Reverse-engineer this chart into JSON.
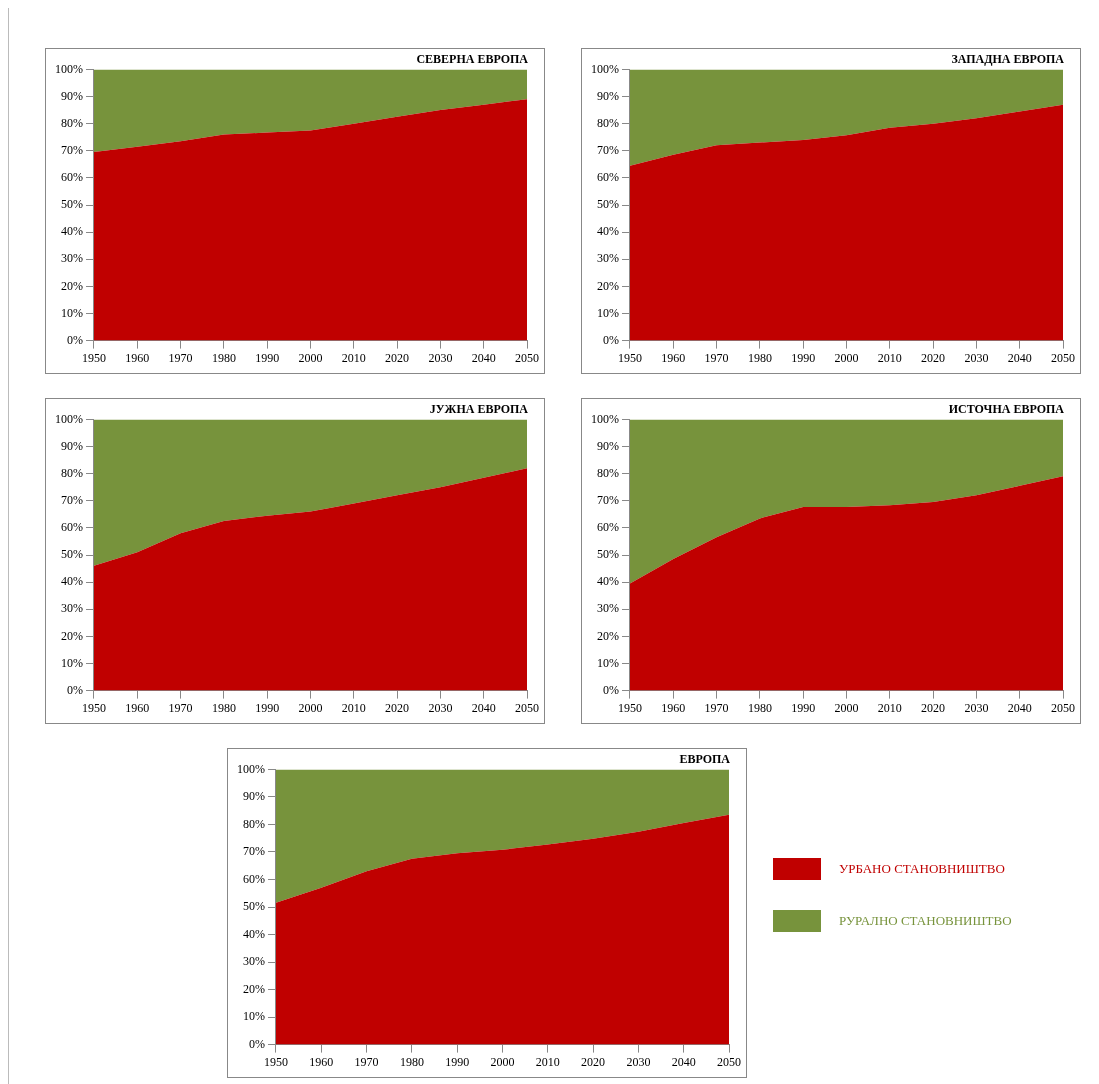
{
  "chart_data": [
    {
      "type": "area",
      "title": "СЕВЕРНА ЕВРОПА",
      "categories": [
        "1950",
        "1960",
        "1970",
        "1980",
        "1990",
        "2000",
        "2010",
        "2020",
        "2030",
        "2040",
        "2050"
      ],
      "stacked": true,
      "ylim": [
        0,
        100
      ],
      "yticks": [
        {
          "value": 0,
          "label": "0%"
        },
        {
          "value": 10,
          "label": "10%"
        },
        {
          "value": 20,
          "label": "20%"
        },
        {
          "value": 30,
          "label": "30%"
        },
        {
          "value": 40,
          "label": "40%"
        },
        {
          "value": 50,
          "label": "50%"
        },
        {
          "value": 60,
          "label": "60%"
        },
        {
          "value": 70,
          "label": "70%"
        },
        {
          "value": 80,
          "label": "80%"
        },
        {
          "value": 90,
          "label": "90%"
        },
        {
          "value": 100,
          "label": "100%"
        }
      ],
      "series": [
        {
          "color": "#c00000",
          "values": [
            69.5,
            71.5,
            73.5,
            76,
            76.7,
            77.5,
            80,
            82.5,
            85,
            87,
            89
          ]
        },
        {
          "color": "#77933c",
          "values": [
            30.5,
            28.5,
            26.5,
            24,
            23.3,
            22.5,
            20,
            17.5,
            15,
            13,
            11
          ]
        }
      ]
    },
    {
      "type": "area",
      "title": "ЗАПАДНА ЕВРОПА",
      "categories": [
        "1950",
        "1960",
        "1970",
        "1980",
        "1990",
        "2000",
        "2010",
        "2020",
        "2030",
        "2040",
        "2050"
      ],
      "stacked": true,
      "ylim": [
        0,
        100
      ],
      "yticks": [
        {
          "value": 0,
          "label": "0%"
        },
        {
          "value": 10,
          "label": "10%"
        },
        {
          "value": 20,
          "label": "20%"
        },
        {
          "value": 30,
          "label": "30%"
        },
        {
          "value": 40,
          "label": "40%"
        },
        {
          "value": 50,
          "label": "50%"
        },
        {
          "value": 60,
          "label": "60%"
        },
        {
          "value": 70,
          "label": "70%"
        },
        {
          "value": 80,
          "label": "80%"
        },
        {
          "value": 90,
          "label": "90%"
        },
        {
          "value": 100,
          "label": "100%"
        }
      ],
      "series": [
        {
          "color": "#c00000",
          "values": [
            64.5,
            68.5,
            72,
            73,
            74,
            75.7,
            78.5,
            80,
            82,
            84.5,
            87
          ]
        },
        {
          "color": "#77933c",
          "values": [
            35.5,
            31.5,
            28,
            27,
            26,
            24.3,
            21.5,
            20,
            18,
            15.5,
            13
          ]
        }
      ]
    },
    {
      "type": "area",
      "title": "ЈУЖНА ЕВРОПА",
      "categories": [
        "1950",
        "1960",
        "1970",
        "1980",
        "1990",
        "2000",
        "2010",
        "2020",
        "2030",
        "2040",
        "2050"
      ],
      "stacked": true,
      "ylim": [
        0,
        100
      ],
      "yticks": [
        {
          "value": 0,
          "label": "0%"
        },
        {
          "value": 10,
          "label": "10%"
        },
        {
          "value": 20,
          "label": "20%"
        },
        {
          "value": 30,
          "label": "30%"
        },
        {
          "value": 40,
          "label": "40%"
        },
        {
          "value": 50,
          "label": "50%"
        },
        {
          "value": 60,
          "label": "60%"
        },
        {
          "value": 70,
          "label": "70%"
        },
        {
          "value": 80,
          "label": "80%"
        },
        {
          "value": 90,
          "label": "90%"
        },
        {
          "value": 100,
          "label": "100%"
        }
      ],
      "series": [
        {
          "color": "#c00000",
          "values": [
            46,
            51,
            58,
            62.5,
            64.5,
            66,
            69,
            72,
            75,
            78.5,
            82
          ]
        },
        {
          "color": "#77933c",
          "values": [
            54,
            49,
            42,
            37.5,
            35.5,
            34,
            31,
            28,
            25,
            21.5,
            18
          ]
        }
      ]
    },
    {
      "type": "area",
      "title": "ИСТОЧНА ЕВРОПА",
      "categories": [
        "1950",
        "1960",
        "1970",
        "1980",
        "1990",
        "2000",
        "2010",
        "2020",
        "2030",
        "2040",
        "2050"
      ],
      "stacked": true,
      "ylim": [
        0,
        100
      ],
      "yticks": [
        {
          "value": 0,
          "label": "0%"
        },
        {
          "value": 10,
          "label": "10%"
        },
        {
          "value": 20,
          "label": "20%"
        },
        {
          "value": 30,
          "label": "30%"
        },
        {
          "value": 40,
          "label": "40%"
        },
        {
          "value": 50,
          "label": "50%"
        },
        {
          "value": 60,
          "label": "60%"
        },
        {
          "value": 70,
          "label": "70%"
        },
        {
          "value": 80,
          "label": "80%"
        },
        {
          "value": 90,
          "label": "90%"
        },
        {
          "value": 100,
          "label": "100%"
        }
      ],
      "series": [
        {
          "color": "#c00000",
          "values": [
            39.5,
            48.5,
            56.5,
            63.5,
            67.7,
            67.7,
            68.3,
            69.5,
            72,
            75.5,
            79
          ]
        },
        {
          "color": "#77933c",
          "values": [
            60.5,
            51.5,
            43.5,
            36.5,
            32.3,
            32.3,
            31.7,
            30.5,
            28,
            24.5,
            21
          ]
        }
      ]
    },
    {
      "type": "area",
      "title": "ЕВРОПА",
      "categories": [
        "1950",
        "1960",
        "1970",
        "1980",
        "1990",
        "2000",
        "2010",
        "2020",
        "2030",
        "2040",
        "2050"
      ],
      "stacked": true,
      "legend": "right",
      "ylim": [
        0,
        100
      ],
      "yticks": [
        {
          "value": 0,
          "label": "0%"
        },
        {
          "value": 10,
          "label": "10%"
        },
        {
          "value": 20,
          "label": "20%"
        },
        {
          "value": 30,
          "label": "30%"
        },
        {
          "value": 40,
          "label": "40%"
        },
        {
          "value": 50,
          "label": "50%"
        },
        {
          "value": 60,
          "label": "60%"
        },
        {
          "value": 70,
          "label": "70%"
        },
        {
          "value": 80,
          "label": "80%"
        },
        {
          "value": 90,
          "label": "90%"
        },
        {
          "value": 100,
          "label": "100%"
        }
      ],
      "series": [
        {
          "name": "УРБАНО СТАНОВНИШТВО",
          "color": "#c00000",
          "values": [
            51.5,
            57,
            63,
            67.5,
            69.5,
            70.8,
            72.7,
            74.8,
            77.3,
            80.5,
            83.5
          ]
        },
        {
          "name": "РУРАЛНО СТАНОВНИШТВО",
          "color": "#77933c",
          "values": [
            48.5,
            43,
            37,
            32.5,
            30.5,
            29.2,
            27.3,
            25.2,
            22.7,
            19.5,
            16.5
          ]
        }
      ]
    }
  ]
}
